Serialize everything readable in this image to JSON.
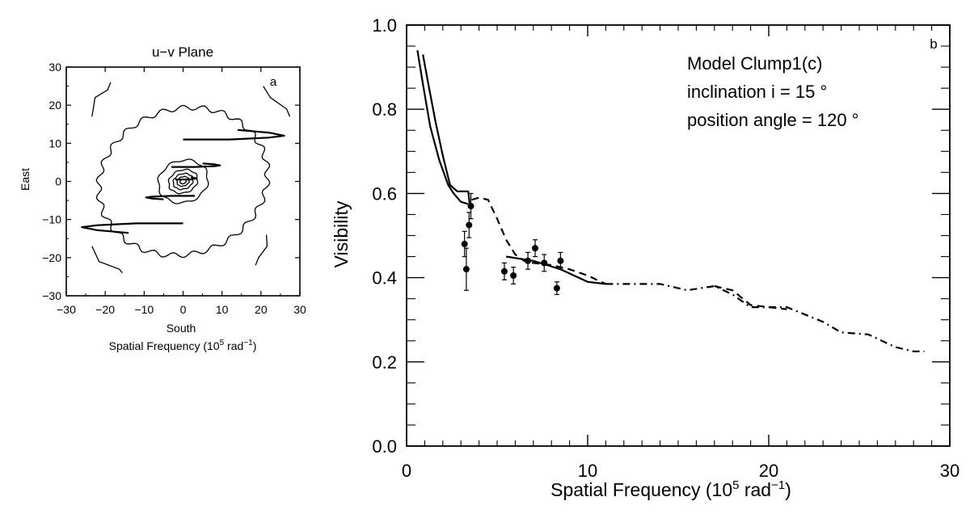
{
  "chart_data": [
    {
      "id": "a",
      "type": "contour",
      "title": "u−v Plane",
      "panel_label": "a",
      "xlabel": "South",
      "xlabel2": "Spatial Frequency (10",
      "xlabel2_exp": "5",
      "xlabel2_tail": " rad",
      "xlabel2_neg": "−1",
      "xlabel2_close": ")",
      "ylabel": "East",
      "xlim": [
        -30,
        30
      ],
      "ylim": [
        -30,
        30
      ],
      "xticks": [
        -30,
        -20,
        -10,
        0,
        10,
        20,
        30
      ],
      "xtick_labels": [
        "−30",
        "−20",
        "−10",
        "0",
        "10",
        "20",
        "30"
      ],
      "yticks": [
        -30,
        -20,
        -10,
        0,
        10,
        20,
        30
      ],
      "ytick_labels": [
        "−30",
        "−20",
        "−10",
        "0",
        "10",
        "20",
        "30"
      ],
      "uv_tracks": [
        {
          "x": [
            0,
            12,
            22,
            26,
            22,
            14
          ],
          "y": [
            11,
            11,
            11.5,
            12,
            12.8,
            13.5
          ]
        },
        {
          "x": [
            0,
            -12,
            -22,
            -26,
            -22,
            -14
          ],
          "y": [
            -11,
            -11,
            -11.5,
            -12,
            -12.8,
            -13.5
          ]
        },
        {
          "x": [
            -3,
            3,
            8,
            9.5,
            8,
            5
          ],
          "y": [
            3.8,
            3.8,
            4,
            4.2,
            4.5,
            4.7
          ]
        },
        {
          "x": [
            3,
            -3,
            -8,
            -9.5,
            -8,
            -5
          ],
          "y": [
            -3.8,
            -3.8,
            -4,
            -4.2,
            -4.5,
            -4.7
          ]
        },
        {
          "x": [
            -2,
            2,
            3.5,
            2
          ],
          "y": [
            0.5,
            0.5,
            0.8,
            1.1
          ]
        }
      ],
      "contours": [
        {
          "level": 1,
          "rx": 22,
          "ry": 19
        },
        {
          "level": 2,
          "rx": 6.5,
          "ry": 5.5
        },
        {
          "level": 3,
          "rx": 3.8,
          "ry": 3
        },
        {
          "level": 4,
          "rx": 2.6,
          "ry": 2
        },
        {
          "level": 5,
          "rx": 1.6,
          "ry": 1.2
        },
        {
          "level": 6,
          "rx": 0.8,
          "ry": 0.6
        }
      ],
      "outer_arcs": [
        {
          "x": [
            -24,
            -22,
            -20,
            -18
          ],
          "y": [
            17,
            22,
            24,
            26
          ]
        },
        {
          "x": [
            20,
            23,
            26,
            28
          ],
          "y": [
            25,
            22,
            19,
            17
          ]
        },
        {
          "x": [
            -24,
            -21,
            -17,
            -15
          ],
          "y": [
            -17,
            -21,
            -23,
            -24
          ]
        },
        {
          "x": [
            18,
            20,
            21,
            22
          ],
          "y": [
            -22,
            -20,
            -17,
            -14
          ]
        }
      ]
    },
    {
      "id": "b",
      "type": "line",
      "panel_label": "b",
      "xlabel": "Spatial Frequency (10",
      "xlabel_exp": "5",
      "xlabel_tail": " rad",
      "xlabel_neg": "−1",
      "xlabel_close": ")",
      "ylabel": "Visibility",
      "xlim": [
        0,
        30
      ],
      "ylim": [
        0,
        1.0
      ],
      "xticks": [
        0,
        10,
        20,
        30
      ],
      "xtick_labels": [
        "0",
        "10",
        "20",
        "30"
      ],
      "yticks": [
        0,
        0.2,
        0.4,
        0.6,
        0.8,
        1.0
      ],
      "ytick_labels": [
        "0.0",
        "0.2",
        "0.4",
        "0.6",
        "0.8",
        "1.0"
      ],
      "annotations": [
        "Model Clump1(c)",
        "inclination i =  15 °",
        "position angle = 120 °"
      ],
      "series": [
        {
          "style": "solid",
          "x": [
            0.6,
            0.9,
            1.3,
            1.8,
            2.3,
            2.6,
            3.0,
            3.4
          ],
          "y": [
            0.94,
            0.86,
            0.76,
            0.68,
            0.62,
            0.6,
            0.58,
            0.575
          ]
        },
        {
          "style": "solid",
          "x": [
            0.9,
            1.2,
            1.6,
            2.0,
            2.4,
            2.8,
            3.4,
            3.5
          ],
          "y": [
            0.93,
            0.86,
            0.77,
            0.69,
            0.62,
            0.605,
            0.605,
            0.57
          ]
        },
        {
          "style": "dashed",
          "x": [
            3.6,
            4.0,
            4.5,
            5.0,
            5.5,
            6.0,
            6.5,
            7.0,
            8.0,
            9.0,
            10.0,
            11.0
          ],
          "y": [
            0.585,
            0.59,
            0.585,
            0.54,
            0.49,
            0.455,
            0.44,
            0.435,
            0.43,
            0.42,
            0.405,
            0.385
          ]
        },
        {
          "style": "solid",
          "x": [
            5.5,
            7.0,
            8.5,
            10.0,
            11.0
          ],
          "y": [
            0.45,
            0.44,
            0.42,
            0.39,
            0.385
          ]
        },
        {
          "style": "dash-dot",
          "x": [
            11.0,
            12.5,
            14.0,
            15.5,
            17.0,
            18.0,
            19.0,
            21.0,
            23.0,
            24.0,
            25.5,
            27.0,
            28.0,
            28.6
          ],
          "y": [
            0.385,
            0.385,
            0.385,
            0.37,
            0.38,
            0.36,
            0.33,
            0.33,
            0.295,
            0.27,
            0.265,
            0.235,
            0.225,
            0.225
          ]
        },
        {
          "style": "dashed",
          "x": [
            17.0,
            18.0,
            19.0,
            21.0
          ],
          "y": [
            0.38,
            0.37,
            0.335,
            0.325
          ]
        }
      ],
      "observations": [
        {
          "x": 3.2,
          "y": 0.48,
          "err": 0.03
        },
        {
          "x": 3.3,
          "y": 0.42,
          "err": 0.05
        },
        {
          "x": 3.45,
          "y": 0.525,
          "err": 0.03
        },
        {
          "x": 3.55,
          "y": 0.57,
          "err": 0.03
        },
        {
          "x": 5.4,
          "y": 0.415,
          "err": 0.02
        },
        {
          "x": 5.9,
          "y": 0.405,
          "err": 0.02
        },
        {
          "x": 6.7,
          "y": 0.44,
          "err": 0.02
        },
        {
          "x": 7.1,
          "y": 0.47,
          "err": 0.02
        },
        {
          "x": 7.6,
          "y": 0.435,
          "err": 0.02
        },
        {
          "x": 8.3,
          "y": 0.375,
          "err": 0.015
        },
        {
          "x": 8.5,
          "y": 0.44,
          "err": 0.02
        }
      ]
    }
  ]
}
